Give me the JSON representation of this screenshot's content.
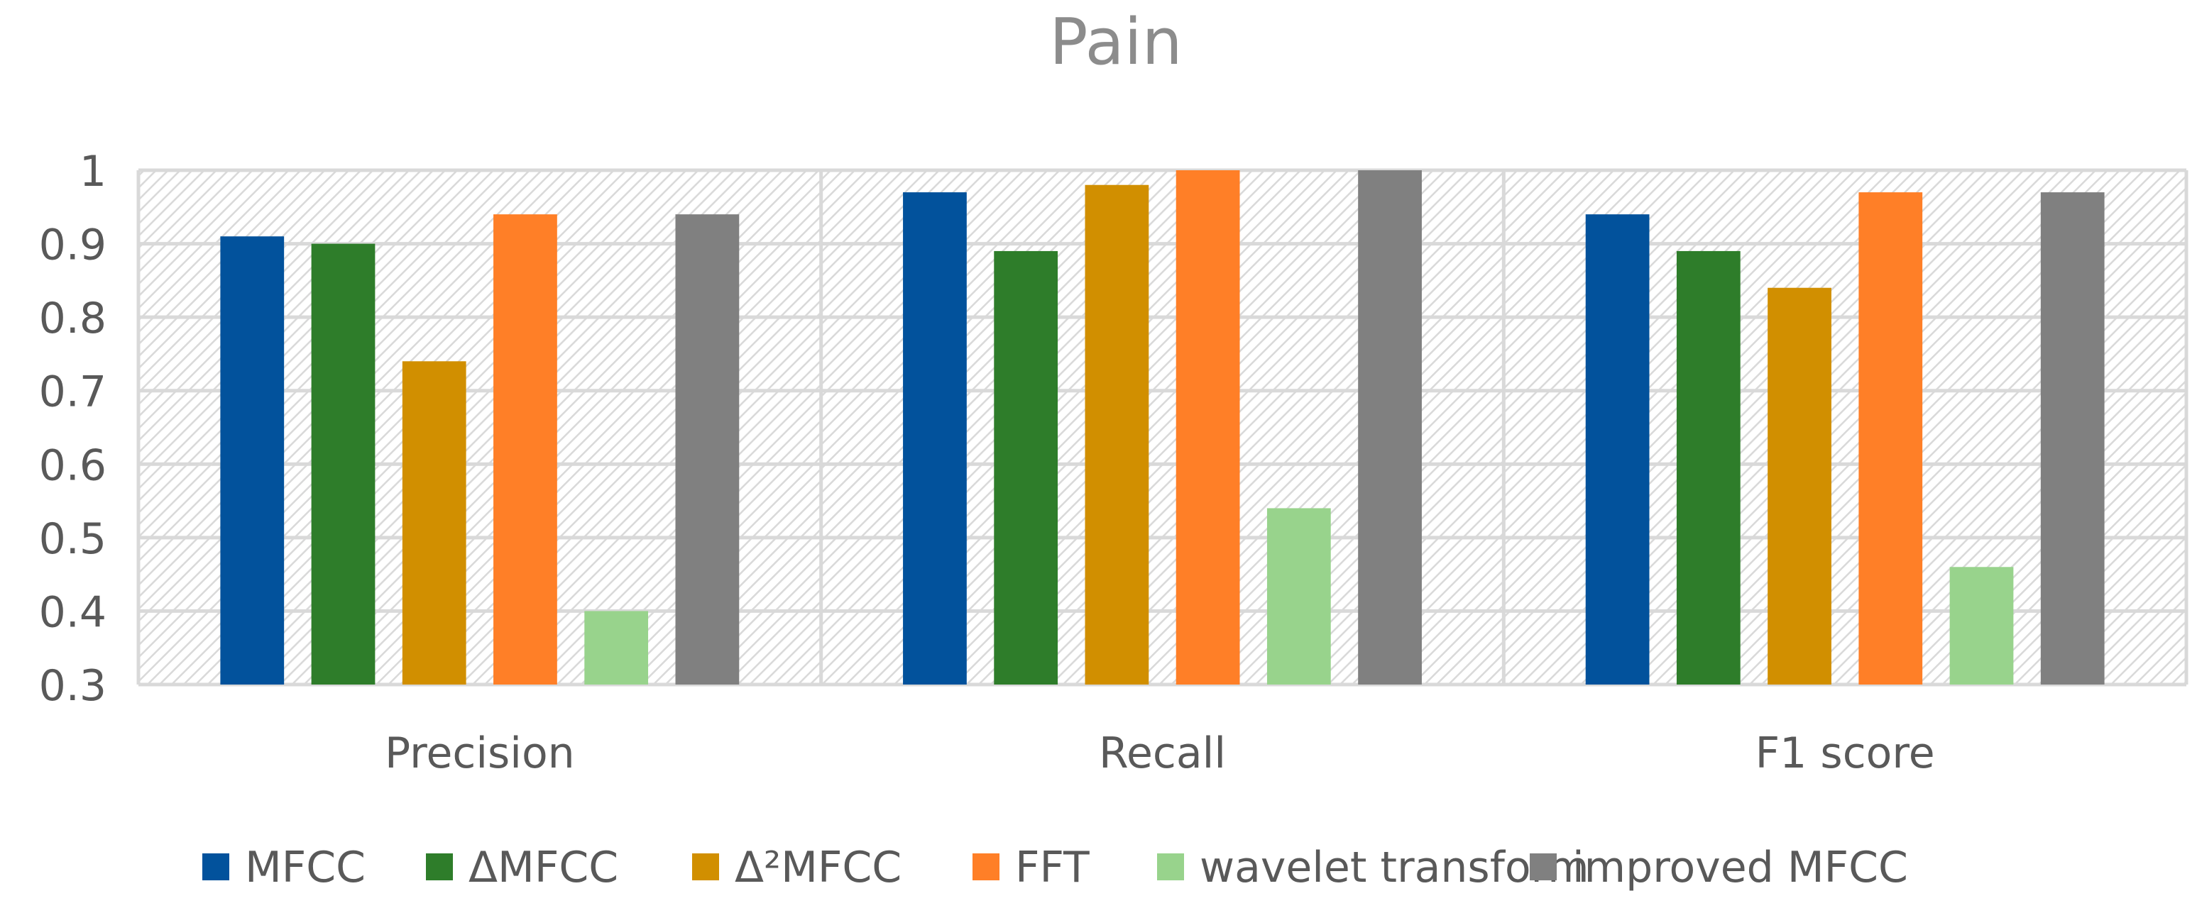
{
  "chart_data": {
    "type": "bar",
    "title": "Pain",
    "categories": [
      "Precision",
      "Recall",
      "F1 score"
    ],
    "ylim": [
      0.3,
      1
    ],
    "yticks": [
      "0.3",
      "0.4",
      "0.5",
      "0.6",
      "0.7",
      "0.8",
      "0.9",
      "1"
    ],
    "grid": true,
    "legend_position": "bottom",
    "series": [
      {
        "name": "MFCC",
        "color": "#02529c",
        "values": [
          0.91,
          0.97,
          0.94
        ]
      },
      {
        "name": "ΔMFCC",
        "color": "#2e7d2a",
        "values": [
          0.9,
          0.89,
          0.89
        ]
      },
      {
        "name": "Δ²MFCC",
        "color": "#d18f00",
        "values": [
          0.74,
          0.98,
          0.84
        ]
      },
      {
        "name": "FFT",
        "color": "#ff7f27",
        "values": [
          0.94,
          1.0,
          0.97
        ]
      },
      {
        "name": "wavelet transform",
        "color": "#98d38c",
        "values": [
          0.4,
          0.54,
          0.46
        ]
      },
      {
        "name": "improved MFCC",
        "color": "#808080",
        "values": [
          0.94,
          1.0,
          0.97
        ]
      }
    ]
  }
}
